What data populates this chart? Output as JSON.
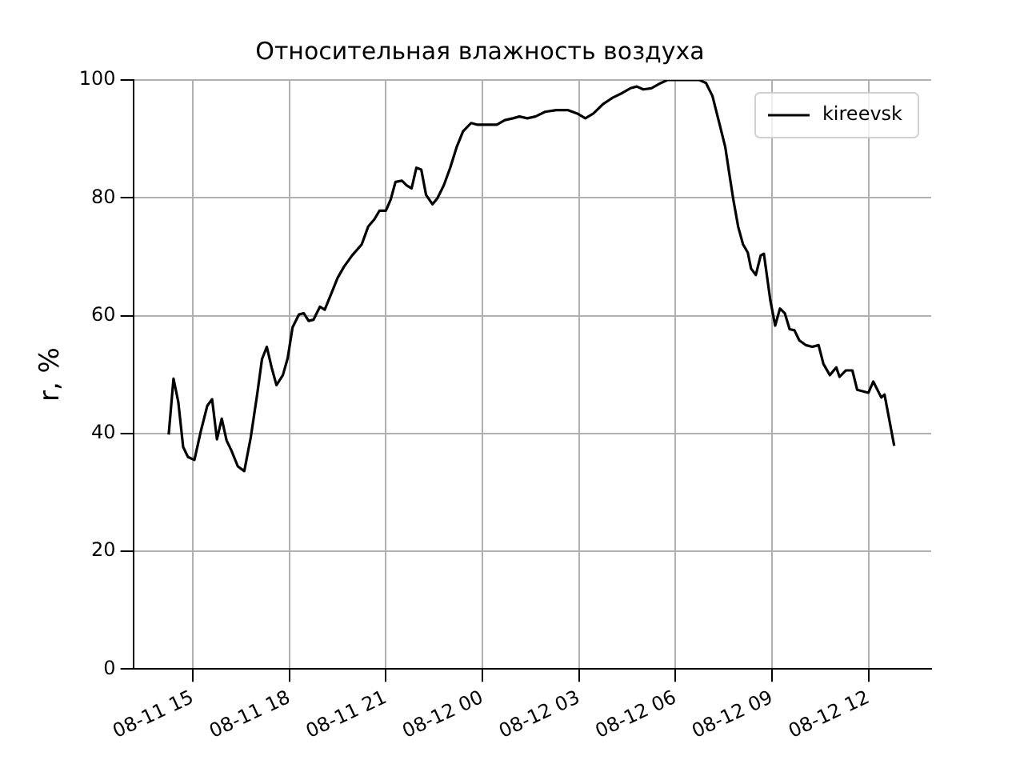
{
  "chart_data": {
    "type": "line",
    "title": "Относительная влажность воздуха",
    "ylabel": "r, %",
    "x": [
      "--08-11T14:15",
      "--08-11T14:24",
      "--08-11T14:33",
      "--08-11T14:42",
      "--08-11T14:51",
      "--08-11T15:03",
      "--08-11T15:15",
      "--08-11T15:27",
      "--08-11T15:36",
      "--08-11T15:45",
      "--08-11T15:54",
      "--08-11T16:03",
      "--08-11T16:12",
      "--08-11T16:24",
      "--08-11T16:36",
      "--08-11T16:48",
      "--08-11T17:00",
      "--08-11T17:09",
      "--08-11T17:18",
      "--08-11T17:27",
      "--08-11T17:36",
      "--08-11T17:48",
      "--08-11T17:57",
      "--08-11T18:06",
      "--08-11T18:18",
      "--08-11T18:27",
      "--08-11T18:36",
      "--08-11T18:45",
      "--08-11T18:57",
      "--08-11T19:06",
      "--08-11T19:18",
      "--08-11T19:30",
      "--08-11T19:42",
      "--08-11T19:57",
      "--08-11T20:15",
      "--08-11T20:27",
      "--08-11T20:39",
      "--08-11T20:48",
      "--08-11T21:00",
      "--08-11T21:09",
      "--08-11T21:18",
      "--08-11T21:30",
      "--08-11T21:39",
      "--08-11T21:48",
      "--08-11T21:57",
      "--08-11T22:06",
      "--08-11T22:15",
      "--08-11T22:27",
      "--08-11T22:36",
      "--08-11T22:48",
      "--08-11T23:00",
      "--08-11T23:12",
      "--08-11T23:24",
      "--08-11T23:39",
      "--08-11T23:51",
      "--08-12T00:09",
      "--08-12T00:27",
      "--08-12T00:42",
      "--08-12T00:57",
      "--08-12T01:09",
      "--08-12T01:24",
      "--08-12T01:39",
      "--08-12T01:57",
      "--08-12T02:18",
      "--08-12T02:39",
      "--08-12T02:57",
      "--08-12T03:12",
      "--08-12T03:27",
      "--08-12T03:45",
      "--08-12T04:03",
      "--08-12T04:21",
      "--08-12T04:36",
      "--08-12T04:48",
      "--08-12T05:00",
      "--08-12T05:15",
      "--08-12T05:33",
      "--08-12T05:45",
      "--08-12T06:00",
      "--08-12T06:24",
      "--08-12T06:45",
      "--08-12T06:57",
      "--08-12T07:09",
      "--08-12T07:21",
      "--08-12T07:33",
      "--08-12T07:42",
      "--08-12T07:48",
      "--08-12T07:57",
      "--08-12T08:06",
      "--08-12T08:15",
      "--08-12T08:21",
      "--08-12T08:30",
      "--08-12T08:39",
      "--08-12T08:45",
      "--08-12T08:57",
      "--08-12T09:06",
      "--08-12T09:15",
      "--08-12T09:24",
      "--08-12T09:33",
      "--08-12T09:42",
      "--08-12T09:51",
      "--08-12T10:03",
      "--08-12T10:15",
      "--08-12T10:27",
      "--08-12T10:36",
      "--08-12T10:48",
      "--08-12T11:00",
      "--08-12T11:06",
      "--08-12T11:18",
      "--08-12T11:30",
      "--08-12T11:39",
      "--08-12T12:00",
      "--08-12T12:09",
      "--08-12T12:24",
      "--08-12T12:30",
      "--08-12T12:48"
    ],
    "series": [
      {
        "name": "kireevsk",
        "color": "#000000",
        "values": [
          39.8,
          49.3,
          45.3,
          37.7,
          36,
          35.5,
          40.4,
          44.7,
          45.8,
          39,
          42.5,
          38.8,
          37.1,
          34.4,
          33.6,
          39.3,
          46.6,
          52.6,
          54.7,
          51.2,
          48.2,
          49.9,
          52.8,
          58,
          60.2,
          60.4,
          59.1,
          59.3,
          61.5,
          61,
          63.7,
          66.4,
          68.3,
          70.2,
          72.1,
          75.1,
          76.4,
          77.8,
          77.8,
          79.7,
          82.7,
          82.9,
          82.1,
          81.6,
          85.1,
          84.8,
          80.5,
          78.9,
          79.9,
          82.1,
          85.1,
          88.6,
          91.3,
          92.7,
          92.4,
          92.4,
          92.4,
          93.2,
          93.5,
          93.8,
          93.5,
          93.8,
          94.6,
          94.9,
          94.9,
          94.3,
          93.5,
          94.3,
          95.9,
          97,
          97.8,
          98.6,
          98.9,
          98.4,
          98.6,
          99.5,
          100,
          100,
          100,
          100,
          99.5,
          97.3,
          93,
          88.6,
          83.2,
          79.7,
          75.1,
          72.1,
          70.7,
          68,
          66.9,
          70.2,
          70.5,
          62.6,
          58.3,
          61.2,
          60.4,
          57.7,
          57.5,
          55.8,
          55,
          54.7,
          55,
          51.8,
          49.9,
          51.2,
          49.6,
          50.7,
          50.7,
          47.4,
          46.9,
          48.8,
          46.1,
          46.6,
          37.9
        ]
      }
    ],
    "xlim": [
      "--08-11T13:09",
      "--08-12T13:57"
    ],
    "xticks": [
      {
        "value": "--08-11T15:00",
        "label": "08-11 15"
      },
      {
        "value": "--08-11T18:00",
        "label": "08-11 18"
      },
      {
        "value": "--08-11T21:00",
        "label": "08-11 21"
      },
      {
        "value": "--08-12T00:00",
        "label": "08-12 00"
      },
      {
        "value": "--08-12T03:00",
        "label": "08-12 03"
      },
      {
        "value": "--08-12T06:00",
        "label": "08-12 06"
      },
      {
        "value": "--08-12T09:00",
        "label": "08-12 09"
      },
      {
        "value": "--08-12T12:00",
        "label": "08-12 12"
      }
    ],
    "ylim": [
      0,
      100
    ],
    "yticks": [
      0,
      20,
      40,
      60,
      80,
      100
    ],
    "grid": true,
    "legend": "top right",
    "line_style": "solid",
    "marker": "none"
  }
}
